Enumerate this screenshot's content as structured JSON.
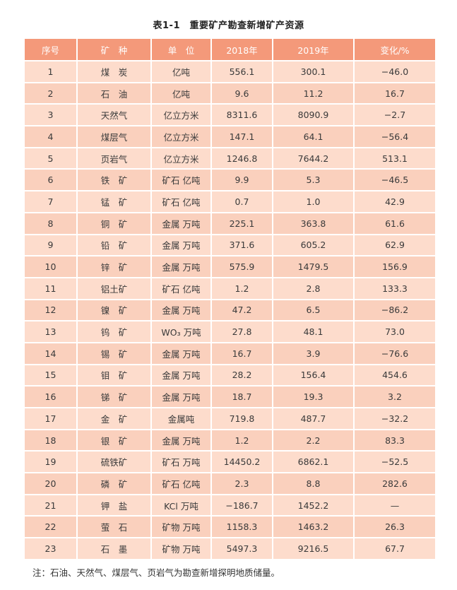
{
  "title": "表1-1　重要矿产勘查新增矿产资源",
  "headers": [
    "序号",
    "矿　种",
    "单　位",
    "2018年",
    "2019年",
    "变化/%"
  ],
  "rows": [
    [
      "1",
      "煤　炭",
      "亿吨",
      "556.1",
      "300.1",
      "−46.0"
    ],
    [
      "2",
      "石　油",
      "亿吨",
      "9.6",
      "11.2",
      "16.7"
    ],
    [
      "3",
      "天然气",
      "亿立方米",
      "8311.6",
      "8090.9",
      "−2.7"
    ],
    [
      "4",
      "煤层气",
      "亿立方米",
      "147.1",
      "64.1",
      "−56.4"
    ],
    [
      "5",
      "页岩气",
      "亿立方米",
      "1246.8",
      "7644.2",
      "513.1"
    ],
    [
      "6",
      "铁　矿",
      "矿石 亿吨",
      "9.9",
      "5.3",
      "−46.5"
    ],
    [
      "7",
      "锰　矿",
      "矿石 亿吨",
      "0.7",
      "1.0",
      "42.9"
    ],
    [
      "8",
      "铜　矿",
      "金属 万吨",
      "225.1",
      "363.8",
      "61.6"
    ],
    [
      "9",
      "铅　矿",
      "金属 万吨",
      "371.6",
      "605.2",
      "62.9"
    ],
    [
      "10",
      "锌　矿",
      "金属 万吨",
      "575.9",
      "1479.5",
      "156.9"
    ],
    [
      "11",
      "铝土矿",
      "矿石 亿吨",
      "1.2",
      "2.8",
      "133.3"
    ],
    [
      "12",
      "镍　矿",
      "金属 万吨",
      "47.2",
      "6.5",
      "−86.2"
    ],
    [
      "13",
      "钨　矿",
      "WO₃ 万吨",
      "27.8",
      "48.1",
      "73.0"
    ],
    [
      "14",
      "锡　矿",
      "金属 万吨",
      "16.7",
      "3.9",
      "−76.6"
    ],
    [
      "15",
      "钼　矿",
      "金属 万吨",
      "28.2",
      "156.4",
      "454.6"
    ],
    [
      "16",
      "锑　矿",
      "金属 万吨",
      "18.7",
      "19.3",
      "3.2"
    ],
    [
      "17",
      "金　矿",
      "金属吨",
      "719.8",
      "487.7",
      "−32.2"
    ],
    [
      "18",
      "银　矿",
      "金属 万吨",
      "1.2",
      "2.2",
      "83.3"
    ],
    [
      "19",
      "硫铁矿",
      "矿石 万吨",
      "14450.2",
      "6862.1",
      "−52.5"
    ],
    [
      "20",
      "磷　矿",
      "矿石 亿吨",
      "2.3",
      "8.8",
      "282.6"
    ],
    [
      "21",
      "钾　盐",
      "KCl 万吨",
      "−186.7",
      "1452.2",
      "—"
    ],
    [
      "22",
      "萤　石",
      "矿物 万吨",
      "1158.3",
      "1463.2",
      "26.3"
    ],
    [
      "23",
      "石　墨",
      "矿物 万吨",
      "5497.3",
      "9216.5",
      "67.7"
    ]
  ],
  "note": "注：石油、天然气、煤层气、页岩气为勘查新增探明地质储量。",
  "colors": {
    "header": "#F4997A",
    "row_light": "#FDDCCC",
    "row_dark": "#FAD0BD"
  }
}
